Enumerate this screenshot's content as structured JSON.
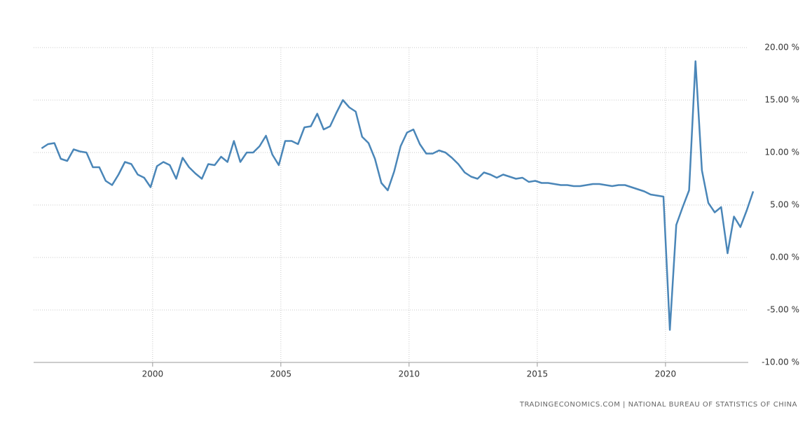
{
  "chart_data": {
    "type": "line",
    "source": "TRADINGECONOMICS.COM | NATIONAL BUREAU OF STATISTICS OF CHINA",
    "x": [
      1995.67,
      1995.92,
      1996.17,
      1996.42,
      1996.67,
      1996.92,
      1997.17,
      1997.42,
      1997.67,
      1997.92,
      1998.17,
      1998.42,
      1998.67,
      1998.92,
      1999.17,
      1999.42,
      1999.67,
      1999.92,
      2000.17,
      2000.42,
      2000.67,
      2000.92,
      2001.17,
      2001.42,
      2001.67,
      2001.92,
      2002.17,
      2002.42,
      2002.67,
      2002.92,
      2003.17,
      2003.42,
      2003.67,
      2003.92,
      2004.17,
      2004.42,
      2004.67,
      2004.92,
      2005.17,
      2005.42,
      2005.67,
      2005.92,
      2006.17,
      2006.42,
      2006.67,
      2006.92,
      2007.17,
      2007.42,
      2007.67,
      2007.92,
      2008.17,
      2008.42,
      2008.67,
      2008.92,
      2009.17,
      2009.42,
      2009.67,
      2009.92,
      2010.17,
      2010.42,
      2010.67,
      2010.92,
      2011.17,
      2011.42,
      2011.67,
      2011.92,
      2012.17,
      2012.42,
      2012.67,
      2012.92,
      2013.17,
      2013.42,
      2013.67,
      2013.92,
      2014.17,
      2014.42,
      2014.67,
      2014.92,
      2015.17,
      2015.42,
      2015.67,
      2015.92,
      2016.17,
      2016.42,
      2016.67,
      2016.92,
      2017.17,
      2017.42,
      2017.67,
      2017.92,
      2018.17,
      2018.42,
      2018.67,
      2018.92,
      2019.17,
      2019.42,
      2019.67,
      2019.92,
      2020.17,
      2020.42,
      2020.67,
      2020.92,
      2021.17,
      2021.42,
      2021.67,
      2021.92,
      2022.17,
      2022.42,
      2022.67,
      2022.92,
      2023.17,
      2023.42
    ],
    "series": [
      {
        "color": "#4a86b8",
        "values": [
          10.4,
          10.8,
          10.9,
          9.4,
          9.2,
          10.3,
          10.1,
          10.0,
          8.6,
          8.6,
          7.3,
          6.9,
          7.9,
          9.1,
          8.9,
          7.9,
          7.6,
          6.7,
          8.7,
          9.1,
          8.8,
          7.5,
          9.5,
          8.6,
          8.0,
          7.5,
          8.9,
          8.8,
          9.6,
          9.1,
          11.1,
          9.1,
          10.0,
          10.0,
          10.6,
          11.6,
          9.8,
          8.8,
          11.1,
          11.1,
          10.8,
          12.4,
          12.5,
          13.7,
          12.2,
          12.5,
          13.8,
          15.0,
          14.3,
          13.9,
          11.5,
          10.9,
          9.4,
          7.1,
          6.4,
          8.2,
          10.6,
          11.9,
          12.2,
          10.8,
          9.9,
          9.9,
          10.2,
          10.0,
          9.5,
          8.9,
          8.1,
          7.7,
          7.5,
          8.1,
          7.9,
          7.6,
          7.9,
          7.7,
          7.5,
          7.6,
          7.2,
          7.3,
          7.1,
          7.1,
          7.0,
          6.9,
          6.9,
          6.8,
          6.8,
          6.9,
          7.0,
          7.0,
          6.9,
          6.8,
          6.9,
          6.9,
          6.7,
          6.5,
          6.3,
          6.0,
          5.9,
          5.8,
          -6.9,
          3.1,
          4.8,
          6.4,
          18.7,
          8.3,
          5.2,
          4.3,
          4.8,
          0.4,
          3.9,
          2.9,
          4.5,
          6.3
        ]
      }
    ],
    "xlim": [
      1995.36,
      2023.5
    ],
    "xticks": [
      2000,
      2005,
      2010,
      2015,
      2020
    ],
    "ylim": [
      -10,
      20
    ],
    "yticks": [
      {
        "value": -10,
        "label": "-10.00 %"
      },
      {
        "value": -5,
        "label": "-5.00 %"
      },
      {
        "value": 0,
        "label": "0.00 %"
      },
      {
        "value": 5,
        "label": "5.00 %"
      },
      {
        "value": 10,
        "label": "10.00 %"
      },
      {
        "value": 15,
        "label": "15.00 %"
      },
      {
        "value": 20,
        "label": "20.00 %"
      }
    ],
    "grid": true
  }
}
